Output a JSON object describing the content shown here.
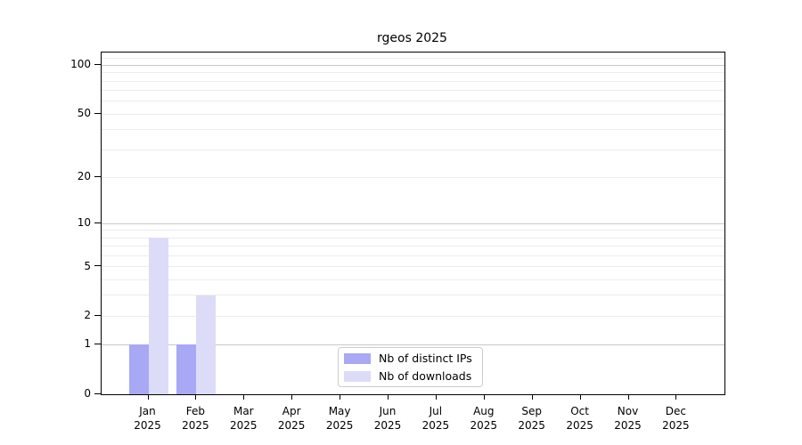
{
  "chart_data": {
    "type": "bar",
    "title": "rgeos 2025",
    "year_label": "2025",
    "categories": [
      "Jan",
      "Feb",
      "Mar",
      "Apr",
      "May",
      "Jun",
      "Jul",
      "Aug",
      "Sep",
      "Oct",
      "Nov",
      "Dec"
    ],
    "series": [
      {
        "name": "Nb of distinct IPs",
        "color": "#a8a8f5",
        "values": [
          1,
          1,
          0,
          0,
          0,
          0,
          0,
          0,
          0,
          0,
          0,
          0
        ]
      },
      {
        "name": "Nb of downloads",
        "color": "#dcdcf8",
        "values": [
          8,
          3,
          0,
          0,
          0,
          0,
          0,
          0,
          0,
          0,
          0,
          0
        ]
      }
    ],
    "y_scale": "log1p",
    "ylim": [
      0,
      120
    ],
    "y_ticks": [
      0,
      1,
      2,
      5,
      10,
      20,
      50,
      100
    ],
    "y_major_gridlines": [
      1,
      10,
      100
    ],
    "y_minor_gridlines": [
      2,
      3,
      4,
      5,
      6,
      7,
      8,
      9,
      20,
      30,
      40,
      50,
      60,
      70,
      80,
      90,
      110
    ],
    "grid": "horizontal",
    "legend_position": "lower center",
    "colors": {
      "major_grid": "#c9c9c9",
      "minor_grid": "#ececec",
      "axis": "#000000",
      "background": "#ffffff",
      "text": "#000000"
    }
  }
}
